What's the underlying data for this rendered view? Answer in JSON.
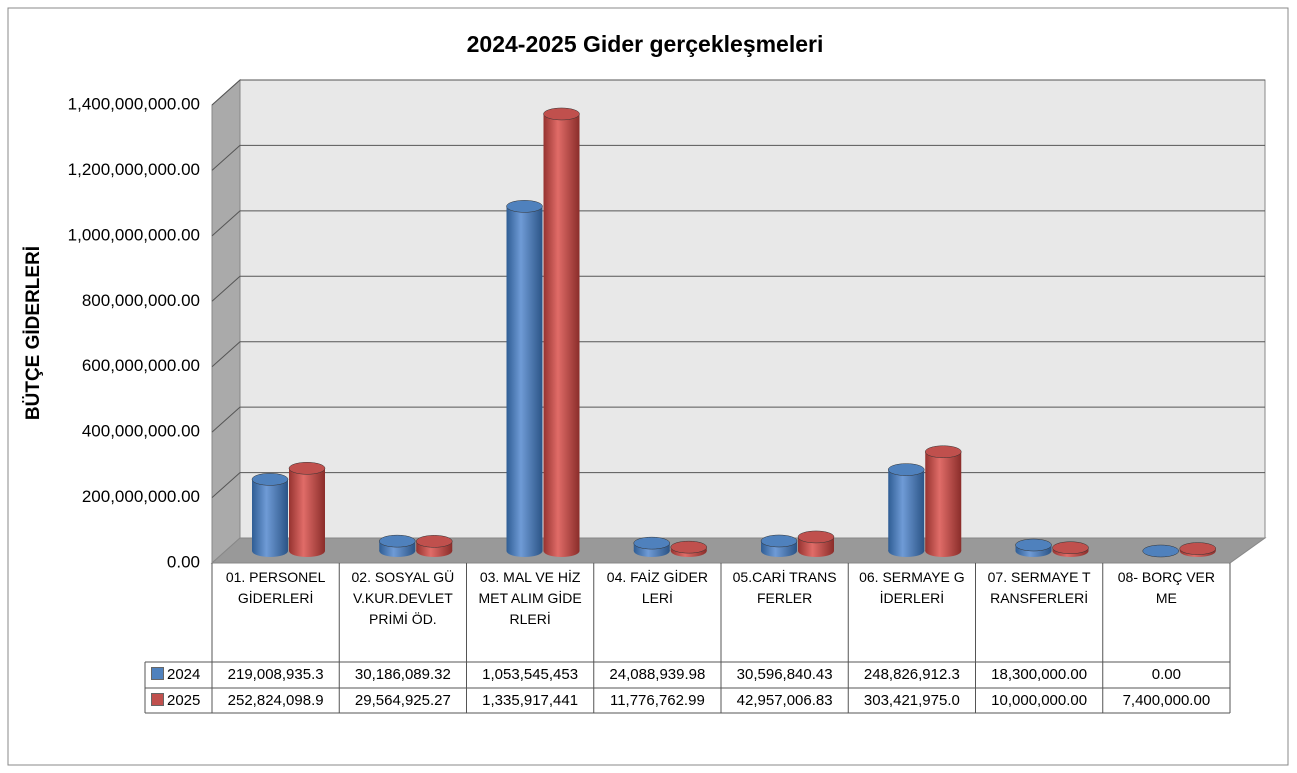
{
  "chart_data": {
    "type": "bar3d",
    "title": "2024-2025 Gider gerçekleşmeleri",
    "y_label": "BÜTÇE GİDERLERİ",
    "categories": [
      "01. PERSONEL GİDERLERİ",
      "02. SOSYAL GÜV.KUR.DEVLET PRİMİ ÖD.",
      "03. MAL VE HİZMET ALIM GİDERLERİ",
      "04. FAİZ GİDERLERİ",
      "05.CARİ TRANSFERLER",
      "06. SERMAYE GİDERLERİ",
      "07. SERMAYE TRANSFERLERİ",
      "08- BORÇ VERME"
    ],
    "series": [
      {
        "name": "2024",
        "color": "#4f81bd",
        "values": [
          219008935.3,
          30186089.32,
          1053545453,
          24088939.98,
          30596840.43,
          248826912.3,
          18300000,
          0
        ],
        "value_labels": [
          "219,008,935.3",
          "30,186,089.32",
          "1,053,545,453",
          "24,088,939.98",
          "30,596,840.43",
          "248,826,912.3",
          "18,300,000.00",
          "0.00"
        ]
      },
      {
        "name": "2025",
        "color": "#c0504d",
        "values": [
          252824098.9,
          29564925.27,
          1335917441,
          11776762.99,
          42957006.83,
          303421975.0,
          10000000,
          7400000
        ],
        "value_labels": [
          "252,824,098.9",
          "29,564,925.27",
          "1,335,917,441",
          "11,776,762.99",
          "42,957,006.83",
          "303,421,975.0",
          "10,000,000.00",
          "7,400,000.00"
        ]
      }
    ],
    "ylim": [
      0,
      1400000000
    ],
    "yticks": [
      {
        "value": 0,
        "label": "0.00"
      },
      {
        "value": 200000000,
        "label": "200,000,000.00"
      },
      {
        "value": 400000000,
        "label": "400,000,000.00"
      },
      {
        "value": 600000000,
        "label": "600,000,000.00"
      },
      {
        "value": 800000000,
        "label": "800,000,000.00"
      },
      {
        "value": 1000000000,
        "label": "1,000,000,000.00"
      },
      {
        "value": 1200000000,
        "label": "1,200,000,000.00"
      },
      {
        "value": 1400000000,
        "label": "1,400,000,000.00"
      }
    ],
    "grid": true
  }
}
